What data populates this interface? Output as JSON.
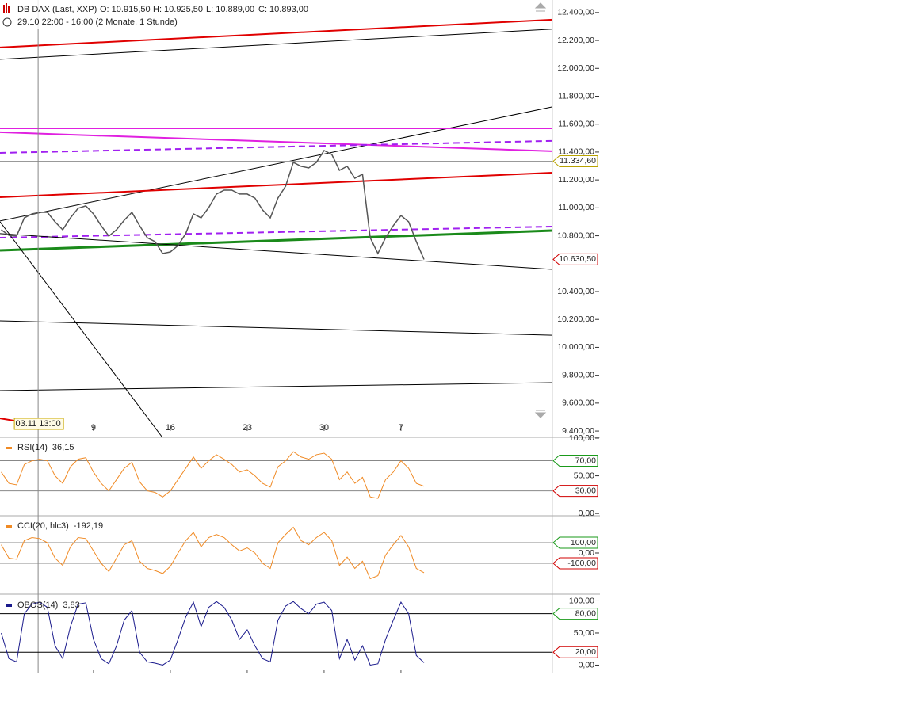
{
  "chart_data": [
    {
      "type": "line",
      "title": "DB DAX (Last, XXP)",
      "ohlc": [
        "O: 10.915,50",
        "H: 10.925,50",
        "L: 10.889,00",
        "C: 10.893,00"
      ],
      "subtitle": "29.10 22:00 - 16:00 (2 Monate, 1 Stunde)",
      "xlim": [
        -1.08,
        34.85
      ],
      "ylim": [
        9355,
        12490
      ],
      "xticks": [
        {
          "value": 5,
          "label": "9"
        },
        {
          "value": 10,
          "label": "16"
        },
        {
          "value": 15,
          "label": "23"
        },
        {
          "value": 20,
          "label": "30"
        },
        {
          "value": 25,
          "label": "7"
        }
      ],
      "yticks": [
        {
          "value": 12400,
          "label": "12.400,00"
        },
        {
          "value": 12200,
          "label": "12.200,00"
        },
        {
          "value": 12000,
          "label": "12.000,00"
        },
        {
          "value": 11800,
          "label": "11.800,00"
        },
        {
          "value": 11600,
          "label": "11.600,00"
        },
        {
          "value": 11400,
          "label": "11.400,00"
        },
        {
          "value": 11200,
          "label": "11.200,00"
        },
        {
          "value": 11000,
          "label": "11.000,00"
        },
        {
          "value": 10800,
          "label": "10.800,00"
        },
        {
          "value": 10400,
          "label": "10.400,00"
        },
        {
          "value": 10200,
          "label": "10.200,00"
        },
        {
          "value": 10000,
          "label": "10.000,00"
        },
        {
          "value": 9800,
          "label": "9.800,00"
        },
        {
          "value": 9600,
          "label": "9.600,00"
        },
        {
          "value": 9400,
          "label": "9.400,00"
        }
      ],
      "markers": [
        {
          "value": 11334.6,
          "label": "11.334,60",
          "color": "#b8a200",
          "line": true
        },
        {
          "value": 10630.5,
          "label": "10.630,50",
          "color": "#d00000",
          "line": false
        }
      ],
      "crosshair": {
        "x": 1.4,
        "label": "03.11 13:00"
      },
      "x": [
        -1,
        -0.5,
        0,
        0.5,
        1,
        1.5,
        2,
        2.5,
        3,
        3.5,
        4,
        4.5,
        5,
        5.5,
        6,
        6.5,
        7,
        7.5,
        8,
        8.5,
        9,
        9.5,
        10,
        10.5,
        11,
        11.5,
        12,
        12.5,
        13,
        13.5,
        14,
        14.5,
        15,
        15.5,
        16,
        16.5,
        17,
        17.5,
        18,
        18.5,
        19,
        19.5,
        20,
        20.5,
        21,
        21.5,
        22,
        22.5,
        23,
        23.5,
        24,
        24.5,
        25,
        25.5,
        26,
        26.5
      ],
      "series": [
        {
          "name": "DB DAX",
          "color": "#555555",
          "values": [
            10843,
            10803,
            10798,
            10928,
            10957,
            10968,
            10968,
            10900,
            10843,
            10928,
            10997,
            11014,
            10957,
            10872,
            10798,
            10843,
            10911,
            10968,
            10872,
            10786,
            10758,
            10673,
            10684,
            10730,
            10815,
            10957,
            10928,
            11002,
            11099,
            11127,
            11127,
            11099,
            11099,
            11070,
            10985,
            10928,
            11070,
            11156,
            11326,
            11298,
            11286,
            11326,
            11411,
            11383,
            11269,
            11298,
            11212,
            11241,
            10786,
            10673,
            10786,
            10872,
            10945,
            10900,
            10758,
            10630
          ]
        }
      ],
      "trendlines": [
        {
          "color": "#e00000",
          "width": 2,
          "dash": false,
          "x": [
            -1.08,
            34.85
          ],
          "values": [
            12150,
            12349
          ]
        },
        {
          "color": "#000000",
          "width": 1,
          "dash": false,
          "x": [
            -1.08,
            34.85
          ],
          "values": [
            12065,
            12281
          ]
        },
        {
          "color": "#000000",
          "width": 1,
          "dash": false,
          "x": [
            -1.08,
            34.85
          ],
          "values": [
            10906,
            11724
          ]
        },
        {
          "color": "#e020e0",
          "width": 2,
          "dash": false,
          "x": [
            -1.08,
            34.85
          ],
          "values": [
            11570,
            11570
          ]
        },
        {
          "color": "#e020e0",
          "width": 2,
          "dash": false,
          "x": [
            -1.08,
            34.85
          ],
          "values": [
            11542,
            11406
          ]
        },
        {
          "color": "#a020f0",
          "width": 2,
          "dash": true,
          "x": [
            -1.08,
            34.85
          ],
          "values": [
            11394,
            11480
          ]
        },
        {
          "color": "#e00000",
          "width": 2,
          "dash": false,
          "x": [
            -1.08,
            34.85
          ],
          "values": [
            11076,
            11252
          ]
        },
        {
          "color": "#a020f0",
          "width": 2,
          "dash": true,
          "x": [
            -1.08,
            34.85
          ],
          "values": [
            10786,
            10866
          ]
        },
        {
          "color": "#1a8a1a",
          "width": 3,
          "dash": false,
          "x": [
            -1.08,
            34.85
          ],
          "values": [
            10695,
            10837
          ]
        },
        {
          "color": "#000000",
          "width": 1,
          "dash": false,
          "x": [
            -1.08,
            34.85
          ],
          "values": [
            10815,
            10559
          ]
        },
        {
          "color": "#000000",
          "width": 1,
          "dash": false,
          "x": [
            -1.08,
            9.48
          ],
          "values": [
            10900,
            9355
          ]
        },
        {
          "color": "#000000",
          "width": 1,
          "dash": false,
          "x": [
            -1.08,
            34.85
          ],
          "values": [
            10190,
            10087
          ]
        },
        {
          "color": "#000000",
          "width": 1,
          "dash": false,
          "x": [
            -1.08,
            34.85
          ],
          "values": [
            9690,
            9747
          ]
        },
        {
          "color": "#e00000",
          "width": 2,
          "dash": false,
          "x": [
            -1.08,
            0.47
          ],
          "values": [
            9491,
            9463
          ]
        }
      ]
    },
    {
      "type": "line",
      "name": "RSI(14)",
      "last": {
        "value": 36.15,
        "label": "36,15"
      },
      "color": "#f08a24",
      "ylim": [
        -3,
        100
      ],
      "yticks": [
        {
          "value": 100,
          "label": "100,00"
        },
        {
          "value": 50,
          "label": "50,00"
        },
        {
          "value": 0,
          "label": "0,00"
        }
      ],
      "levels": [
        {
          "value": 70,
          "label": "70,00",
          "color": "#1a9a1a"
        },
        {
          "value": 30,
          "label": "30,00",
          "color": "#d00000"
        }
      ],
      "values": [
        55,
        40,
        38,
        65,
        70,
        72,
        70,
        50,
        40,
        62,
        72,
        74,
        55,
        40,
        30,
        45,
        60,
        68,
        42,
        30,
        28,
        22,
        30,
        45,
        60,
        75,
        60,
        70,
        78,
        72,
        65,
        55,
        58,
        50,
        40,
        35,
        62,
        70,
        82,
        75,
        72,
        78,
        80,
        72,
        45,
        55,
        40,
        48,
        22,
        20,
        45,
        55,
        70,
        60,
        40,
        36.15
      ]
    },
    {
      "type": "line",
      "name": "CCI(20, hlc3)",
      "last": {
        "value": -192.19,
        "label": "-192,19"
      },
      "color": "#f08a24",
      "ylim": [
        -400,
        354
      ],
      "yticks": [
        {
          "value": 0,
          "label": "0,00"
        }
      ],
      "levels": [
        {
          "value": 100,
          "label": "100,00",
          "color": "#1a9a1a"
        },
        {
          "value": -100,
          "label": "-100,00",
          "color": "#d00000"
        }
      ],
      "values": [
        80,
        -50,
        -60,
        120,
        150,
        140,
        100,
        -50,
        -120,
        60,
        150,
        140,
        20,
        -100,
        -180,
        -50,
        80,
        120,
        -80,
        -150,
        -170,
        -200,
        -130,
        0,
        120,
        200,
        60,
        150,
        180,
        150,
        80,
        20,
        50,
        0,
        -100,
        -150,
        100,
        180,
        250,
        120,
        80,
        150,
        200,
        120,
        -120,
        -40,
        -150,
        -80,
        -250,
        -220,
        -20,
        80,
        170,
        60,
        -150,
        -192.19
      ]
    },
    {
      "type": "line",
      "name": "OBOS(14)",
      "last": {
        "value": 3.83,
        "label": "3,83"
      },
      "color": "#1a1a8c",
      "ylim": [
        -13,
        108
      ],
      "yticks": [
        {
          "value": 100,
          "label": "100,00"
        },
        {
          "value": 50,
          "label": "50,00"
        },
        {
          "value": 0,
          "label": "0,00"
        }
      ],
      "levels": [
        {
          "value": 80,
          "label": "80,00",
          "color": "#1a9a1a"
        },
        {
          "value": 20,
          "label": "20,00",
          "color": "#d00000"
        }
      ],
      "values": [
        50,
        10,
        5,
        80,
        95,
        98,
        90,
        30,
        10,
        60,
        95,
        97,
        40,
        10,
        2,
        30,
        70,
        85,
        20,
        5,
        3,
        0,
        8,
        40,
        75,
        98,
        60,
        90,
        99,
        90,
        70,
        40,
        55,
        30,
        10,
        5,
        70,
        92,
        99,
        88,
        80,
        95,
        98,
        85,
        10,
        40,
        8,
        30,
        0,
        2,
        40,
        70,
        98,
        80,
        15,
        3.83
      ]
    }
  ]
}
